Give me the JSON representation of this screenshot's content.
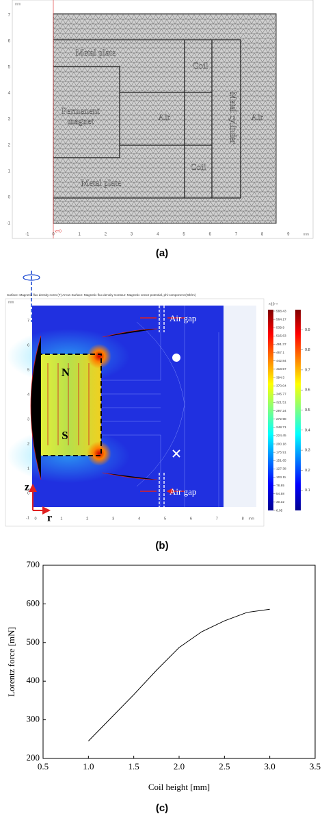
{
  "panel_a": {
    "caption": "(a)",
    "unit": "mm",
    "marker_label": "x=0",
    "xticks": [
      -1,
      0,
      1,
      2,
      3,
      4,
      5,
      6,
      7,
      8,
      9
    ],
    "yticks": [
      -1,
      0,
      1,
      2,
      3,
      4,
      5,
      6,
      7
    ],
    "regions": [
      "Metal plate",
      "Coil",
      "Permanent magnet",
      "Air",
      "Metal cylinder",
      "Air",
      "Coil",
      "Metal plate"
    ]
  },
  "panel_b": {
    "caption": "(b)",
    "header": "Surface: Magnetic flux density norm (T)  Arrow Surface: Magnetic flux density  Contour: Magnetic vector potential, phi-component (Wb/m)",
    "unit": "mm",
    "xticks": [
      0,
      1,
      2,
      3,
      4,
      5,
      6,
      7,
      8
    ],
    "yticks": [
      -1,
      0,
      1,
      2,
      3,
      4,
      5,
      6,
      7
    ],
    "air_gap_labels": [
      "Air gap",
      "Air gap"
    ],
    "pole_labels": [
      "N",
      "S"
    ],
    "axis_labels": [
      "z",
      "r"
    ],
    "colorbar_a": {
      "exponent_label": "×10⁻³",
      "ticks": [
        588.43,
        564.17,
        539.9,
        515.63,
        491.37,
        467.1,
        442.84,
        418.57,
        394.3,
        370.04,
        345.77,
        321.51,
        297.24,
        272.98,
        248.71,
        224.45,
        200.18,
        175.91,
        151.65,
        127.38,
        103.11,
        78.85,
        54.58,
        30.32,
        6.05
      ]
    },
    "colorbar_b": {
      "ticks": [
        0.9,
        0.8,
        0.7,
        0.6,
        0.5,
        0.4,
        0.3,
        0.2,
        0.1
      ]
    }
  },
  "chart_data": {
    "type": "line",
    "caption": "(c)",
    "xlabel": "Coil height [mm]",
    "ylabel": "Lorentz force [mN]",
    "x": [
      1.0,
      1.25,
      1.5,
      1.75,
      2.0,
      2.25,
      2.5,
      2.75,
      3.0
    ],
    "values": [
      245,
      305,
      365,
      428,
      487,
      528,
      556,
      578,
      586
    ],
    "color": "#000000",
    "xlim": [
      0.5,
      3.5
    ],
    "xticks": [
      0.5,
      {
        "value": 1,
        "label": "1.0"
      },
      1.5,
      {
        "value": 2,
        "label": "2.0"
      },
      2.5,
      {
        "value": 3,
        "label": "3.0"
      },
      3.5
    ],
    "ylim": [
      200,
      700
    ],
    "yticks": [
      200,
      300,
      400,
      500,
      600,
      700
    ]
  }
}
